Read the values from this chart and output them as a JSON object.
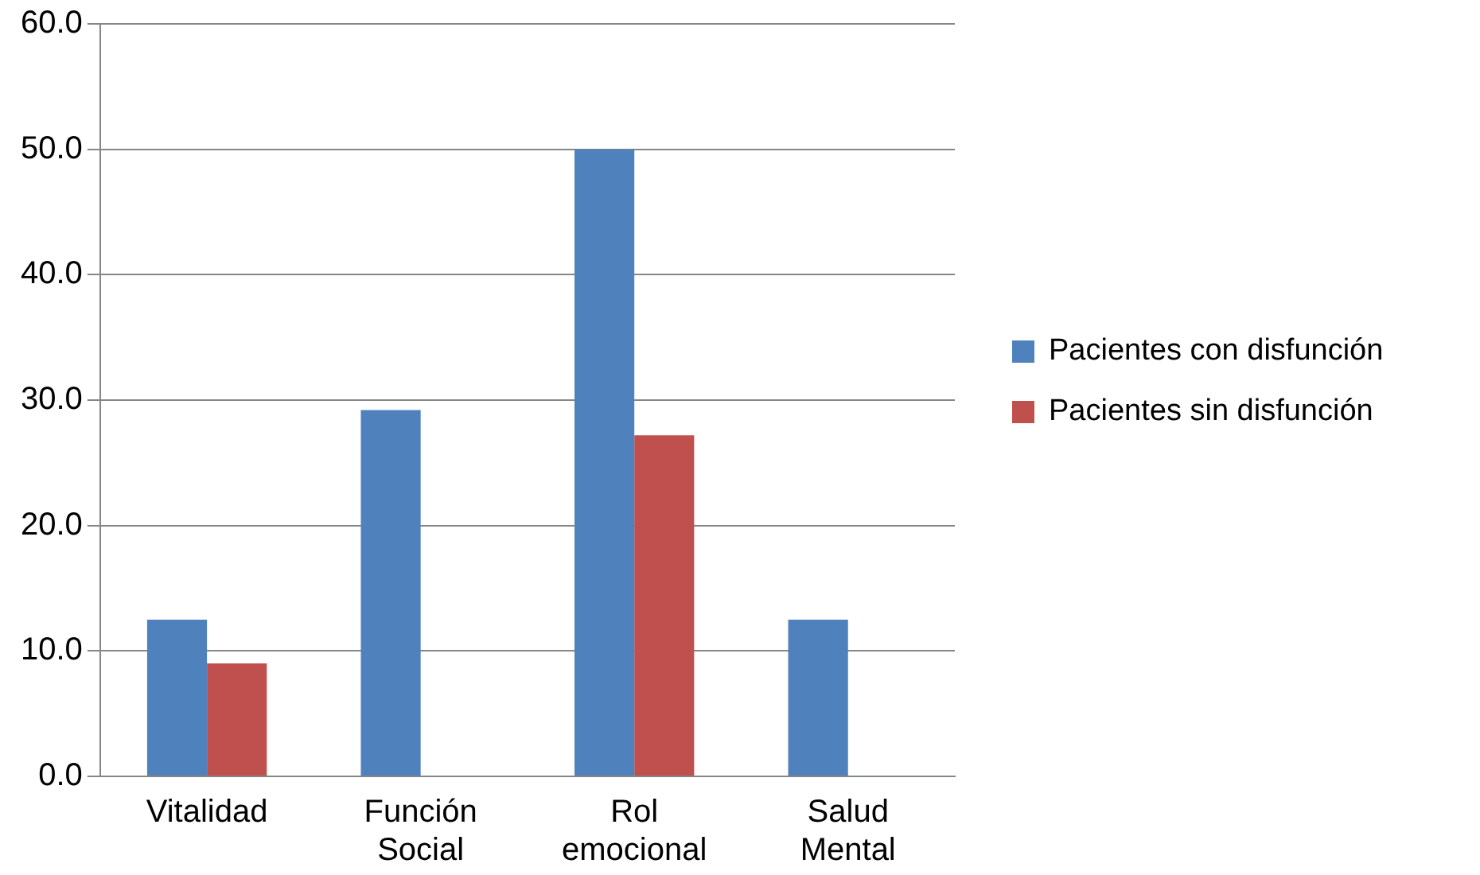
{
  "chart_data": {
    "type": "bar",
    "categories": [
      "Vitalidad",
      "Función Social",
      "Rol emocional",
      "Salud Mental"
    ],
    "series": [
      {
        "name": "Pacientes con disfunción",
        "color": "#4f81bd",
        "values": [
          12.5,
          29.2,
          50.0,
          12.5
        ]
      },
      {
        "name": "Pacientes sin disfunción",
        "color": "#c0504d",
        "values": [
          9.0,
          0,
          27.2,
          0
        ]
      }
    ],
    "ylim": [
      0,
      60
    ],
    "yticks": [
      {
        "value": 0,
        "label": "0.0"
      },
      {
        "value": 10,
        "label": "10.0"
      },
      {
        "value": 20,
        "label": "20.0"
      },
      {
        "value": 30,
        "label": "30.0"
      },
      {
        "value": 40,
        "label": "40.0"
      },
      {
        "value": 50,
        "label": "50.0"
      },
      {
        "value": 60,
        "label": "60.0"
      }
    ],
    "grid": "y",
    "legend": "right"
  }
}
